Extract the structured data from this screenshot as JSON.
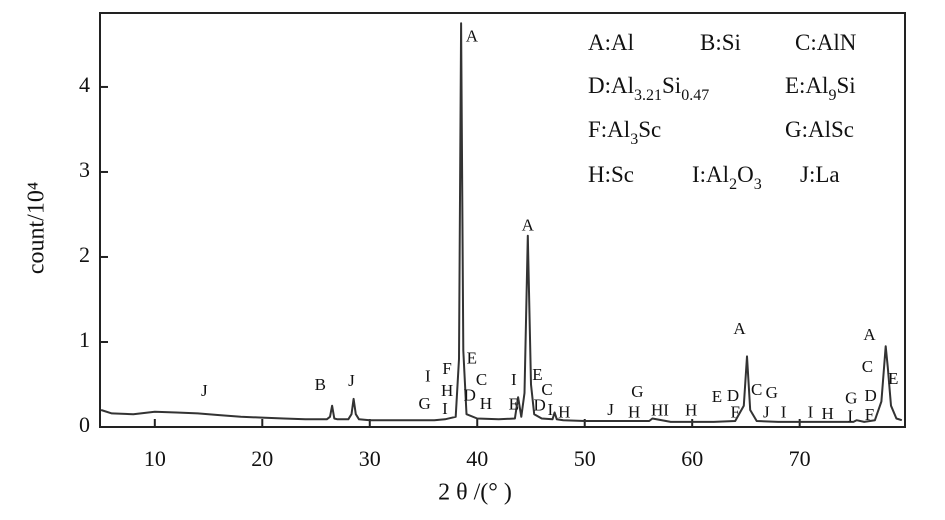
{
  "chart_data": {
    "type": "line",
    "xlabel": "2 θ /(°  )",
    "ylabel": "count/10⁴",
    "xlim": [
      4.9,
      79.8
    ],
    "ylim": [
      0,
      4.87
    ],
    "xticks": [
      10,
      20,
      30,
      40,
      50,
      60,
      70
    ],
    "yticks": [
      0,
      1,
      2,
      3,
      4
    ],
    "x": [
      5,
      6,
      8,
      10,
      12,
      14,
      16,
      18,
      20,
      22,
      24,
      26,
      26.3,
      26.5,
      26.7,
      27,
      28,
      28.3,
      28.5,
      28.7,
      29,
      30,
      32,
      34,
      36,
      37,
      38,
      38.3,
      38.5,
      38.7,
      39,
      40,
      42,
      43.5,
      43.8,
      44.1,
      44.4,
      44.7,
      45,
      45.3,
      46,
      47,
      47.2,
      47.4,
      48,
      50,
      52,
      54,
      56,
      56.3,
      58,
      60,
      62,
      64,
      64.8,
      65.1,
      65.4,
      66,
      68,
      70,
      72,
      74,
      75,
      75.3,
      76,
      77,
      77.6,
      78,
      78.2,
      78.5,
      79,
      79.5
    ],
    "series": [
      {
        "color": "#333333",
        "values": [
          0.2,
          0.16,
          0.15,
          0.18,
          0.17,
          0.16,
          0.14,
          0.12,
          0.11,
          0.1,
          0.09,
          0.09,
          0.12,
          0.25,
          0.1,
          0.09,
          0.09,
          0.15,
          0.33,
          0.15,
          0.09,
          0.08,
          0.08,
          0.08,
          0.08,
          0.09,
          0.12,
          0.8,
          4.75,
          0.9,
          0.15,
          0.1,
          0.09,
          0.1,
          0.35,
          0.12,
          0.4,
          2.25,
          0.5,
          0.15,
          0.1,
          0.09,
          0.17,
          0.09,
          0.08,
          0.07,
          0.07,
          0.07,
          0.07,
          0.1,
          0.06,
          0.06,
          0.06,
          0.07,
          0.25,
          0.83,
          0.2,
          0.07,
          0.06,
          0.06,
          0.06,
          0.06,
          0.06,
          0.08,
          0.06,
          0.08,
          0.3,
          0.95,
          0.7,
          0.25,
          0.1,
          0.08
        ]
      }
    ],
    "annotations": [
      {
        "text": "J",
        "x": 14.6,
        "y": 0.41
      },
      {
        "text": "B",
        "x": 25.4,
        "y": 0.48
      },
      {
        "text": "J",
        "x": 28.3,
        "y": 0.53
      },
      {
        "text": "G",
        "x": 35.1,
        "y": 0.26
      },
      {
        "text": "I",
        "x": 35.4,
        "y": 0.58
      },
      {
        "text": "F",
        "x": 37.2,
        "y": 0.67
      },
      {
        "text": "H",
        "x": 37.2,
        "y": 0.41
      },
      {
        "text": "I",
        "x": 37.0,
        "y": 0.2
      },
      {
        "text": "A",
        "x": 39.5,
        "y": 4.58
      },
      {
        "text": "E",
        "x": 39.5,
        "y": 0.79
      },
      {
        "text": "D",
        "x": 39.3,
        "y": 0.36
      },
      {
        "text": "C",
        "x": 40.4,
        "y": 0.54
      },
      {
        "text": "H",
        "x": 40.8,
        "y": 0.26
      },
      {
        "text": "I",
        "x": 43.4,
        "y": 0.54
      },
      {
        "text": "E",
        "x": 43.4,
        "y": 0.25
      },
      {
        "text": "A",
        "x": 44.7,
        "y": 2.36
      },
      {
        "text": "E",
        "x": 45.6,
        "y": 0.6
      },
      {
        "text": "D",
        "x": 45.8,
        "y": 0.24
      },
      {
        "text": "C",
        "x": 46.5,
        "y": 0.42
      },
      {
        "text": "I",
        "x": 46.8,
        "y": 0.19
      },
      {
        "text": "H",
        "x": 48.1,
        "y": 0.16
      },
      {
        "text": "J",
        "x": 52.4,
        "y": 0.19
      },
      {
        "text": "G",
        "x": 54.9,
        "y": 0.4
      },
      {
        "text": "H",
        "x": 54.6,
        "y": 0.16
      },
      {
        "text": "HI",
        "x": 57.0,
        "y": 0.18
      },
      {
        "text": "H",
        "x": 59.9,
        "y": 0.18
      },
      {
        "text": "E",
        "x": 62.3,
        "y": 0.34
      },
      {
        "text": "D",
        "x": 63.8,
        "y": 0.35
      },
      {
        "text": "F",
        "x": 64.0,
        "y": 0.16
      },
      {
        "text": "A",
        "x": 64.4,
        "y": 1.14
      },
      {
        "text": "C",
        "x": 66.0,
        "y": 0.42
      },
      {
        "text": "G",
        "x": 67.4,
        "y": 0.39
      },
      {
        "text": "J",
        "x": 66.9,
        "y": 0.16
      },
      {
        "text": "I",
        "x": 68.5,
        "y": 0.16
      },
      {
        "text": "I",
        "x": 71.0,
        "y": 0.16
      },
      {
        "text": "H",
        "x": 72.6,
        "y": 0.14
      },
      {
        "text": "G",
        "x": 74.8,
        "y": 0.32
      },
      {
        "text": "I",
        "x": 74.7,
        "y": 0.11
      },
      {
        "text": "A",
        "x": 76.5,
        "y": 1.07
      },
      {
        "text": "C",
        "x": 76.3,
        "y": 0.69
      },
      {
        "text": "D",
        "x": 76.6,
        "y": 0.35
      },
      {
        "text": "F",
        "x": 76.5,
        "y": 0.13
      },
      {
        "text": "E",
        "x": 78.7,
        "y": 0.55
      }
    ],
    "legend": [
      "A:Al",
      "B:Si",
      "C:AlN",
      "D:Al3.21Si0.47",
      "E:Al9Si",
      "F:Al3Sc",
      "G:AlSc",
      "H:Sc",
      "I:Al2O3",
      "J:La"
    ]
  }
}
